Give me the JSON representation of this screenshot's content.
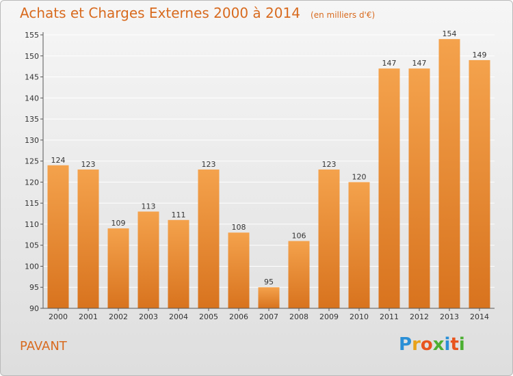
{
  "chart_data": {
    "type": "bar",
    "title": "Achats et Charges Externes 2000 à 2014",
    "subtitle": "(en milliers d'€)",
    "categories": [
      "2000",
      "2001",
      "2002",
      "2003",
      "2004",
      "2005",
      "2006",
      "2007",
      "2008",
      "2009",
      "2010",
      "2011",
      "2012",
      "2013",
      "2014"
    ],
    "values": [
      124,
      123,
      109,
      113,
      111,
      123,
      108,
      95,
      106,
      123,
      120,
      147,
      147,
      154,
      149
    ],
    "ylim": [
      90,
      155
    ],
    "yticks": [
      90,
      95,
      100,
      105,
      110,
      115,
      120,
      125,
      130,
      135,
      140,
      145,
      150,
      155
    ],
    "grid": true,
    "bar_color": "#f0953a",
    "bar_color_dark": "#d8731e"
  },
  "footer": {
    "city": "PAVANT",
    "logo": "Proxiti"
  }
}
